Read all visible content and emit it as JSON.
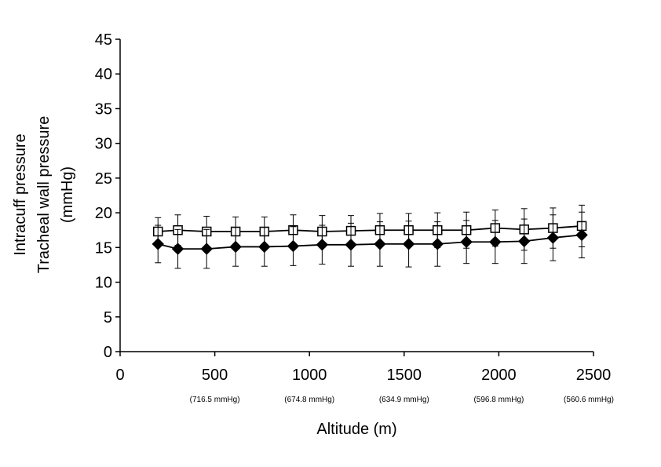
{
  "chart_data": {
    "type": "line",
    "title": "",
    "xlabel": "Altitude (m)",
    "ylabel_lines": [
      "Intracuff pressure",
      "Tracheal wall pressure",
      "(mmHg)"
    ],
    "xlim": [
      0,
      2500
    ],
    "ylim": [
      0,
      45
    ],
    "xticks": [
      0,
      500,
      1000,
      1500,
      2000,
      2500
    ],
    "yticks": [
      0,
      5,
      10,
      15,
      20,
      25,
      30,
      35,
      40,
      45
    ],
    "xtick_sublabels": [
      {
        "x": 500,
        "text": "(716.5 mmHg)"
      },
      {
        "x": 1000,
        "text": "(674.8 mmHg)"
      },
      {
        "x": 1500,
        "text": "(634.9 mmHg)"
      },
      {
        "x": 2000,
        "text": "(596.8 mmHg)"
      },
      {
        "x": 2500,
        "text": "(560.6 mmHg)"
      }
    ],
    "grid": false,
    "legend": "none",
    "x": [
      200,
      305,
      457,
      610,
      762,
      914,
      1067,
      1219,
      1372,
      1524,
      1676,
      1829,
      1981,
      2134,
      2286,
      2438
    ],
    "series": [
      {
        "marker": "open-square",
        "color": "#000000",
        "values": [
          17.3,
          17.5,
          17.3,
          17.3,
          17.3,
          17.5,
          17.3,
          17.4,
          17.5,
          17.5,
          17.5,
          17.5,
          17.8,
          17.6,
          17.8,
          18.1
        ],
        "errors": [
          2.0,
          2.2,
          2.2,
          2.1,
          2.1,
          2.2,
          2.3,
          2.2,
          2.4,
          2.4,
          2.5,
          2.6,
          2.6,
          3.0,
          2.9,
          3.0
        ]
      },
      {
        "marker": "filled-diamond",
        "color": "#000000",
        "values": [
          15.5,
          14.8,
          14.8,
          15.1,
          15.1,
          15.2,
          15.4,
          15.4,
          15.5,
          15.5,
          15.5,
          15.8,
          15.8,
          15.9,
          16.4,
          16.8
        ],
        "errors": [
          2.7,
          2.8,
          2.8,
          2.8,
          2.8,
          2.8,
          2.8,
          3.1,
          3.2,
          3.3,
          3.2,
          3.1,
          3.1,
          3.2,
          3.3,
          3.3
        ]
      }
    ]
  }
}
